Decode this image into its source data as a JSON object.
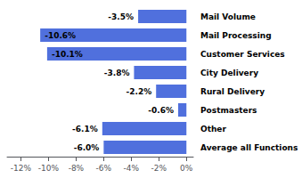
{
  "chart_data": {
    "type": "bar",
    "orientation": "horizontal",
    "categories": [
      "Mail Volume",
      "Mail Processing",
      "Customer Services",
      "City Delivery",
      "Rural Delivery",
      "Postmasters",
      "Other",
      "Average all Functions"
    ],
    "values": [
      -3.5,
      -10.6,
      -10.1,
      -3.8,
      -2.2,
      -0.6,
      -6.1,
      -6.0
    ],
    "value_labels": [
      "-3.5%",
      "-10.6%",
      "-10.1%",
      "-3.8%",
      "-2.2%",
      "-0.6%",
      "-6.1%",
      "-6.0%"
    ],
    "data_labels": true,
    "xlim": [
      -13.0,
      0.5
    ],
    "xticks": [
      {
        "value": -12,
        "label": "-12%"
      },
      {
        "value": -10,
        "label": "-10%"
      },
      {
        "value": -8,
        "label": "-8%"
      },
      {
        "value": -6,
        "label": "-6%"
      },
      {
        "value": -4,
        "label": "-4%"
      },
      {
        "value": -2,
        "label": "-2%"
      },
      {
        "value": 0,
        "label": "0%"
      }
    ],
    "grid": false
  }
}
